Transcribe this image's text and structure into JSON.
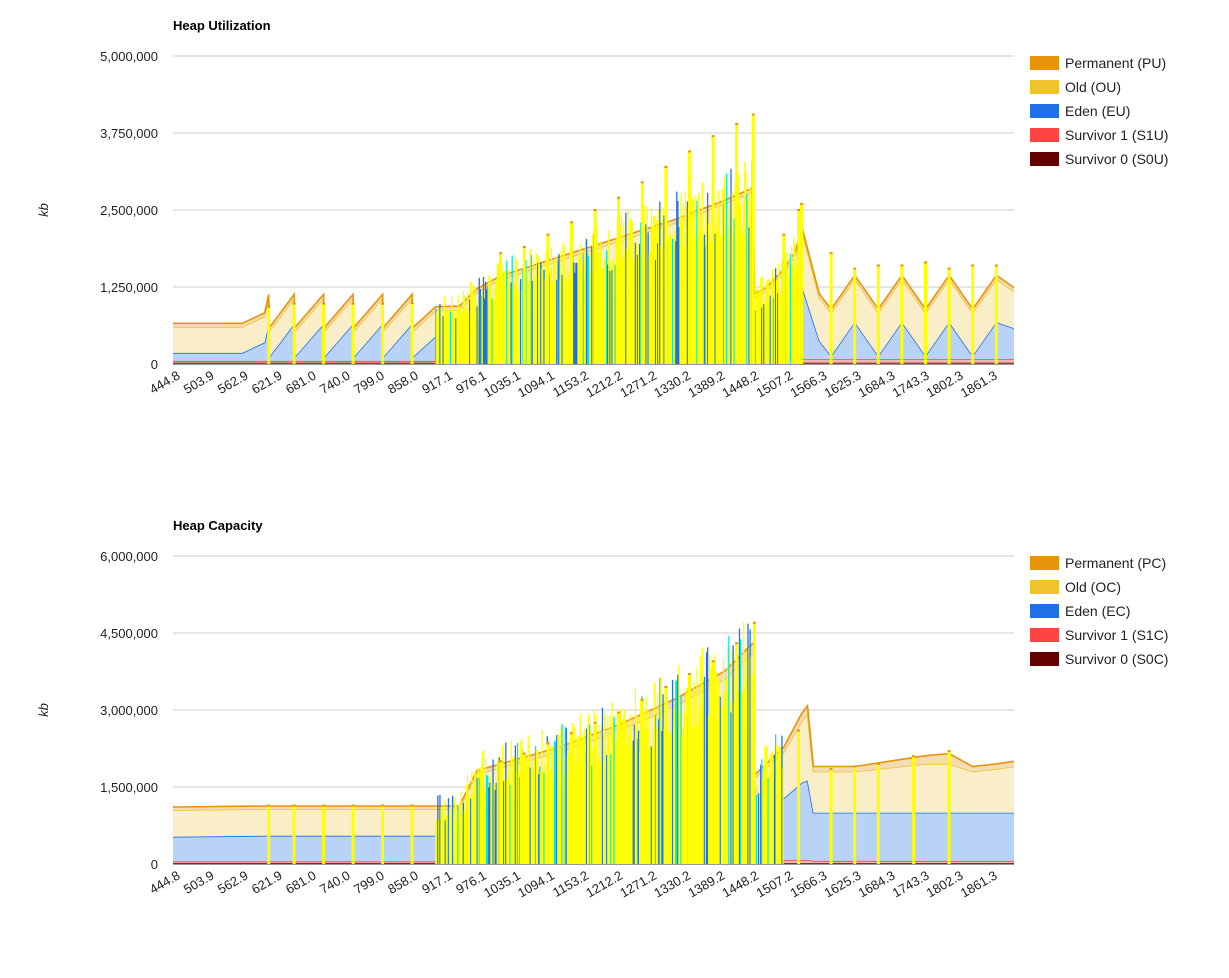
{
  "charts": [
    {
      "id": "utilization",
      "chart_data": {
        "type": "area",
        "stacked": true,
        "title": "Heap Utilization",
        "xlabel": "",
        "ylabel": "kb",
        "ylim": [
          0,
          5000000
        ],
        "yticks": [
          0,
          1250000,
          2500000,
          3750000,
          5000000
        ],
        "ytick_labels": [
          "0",
          "1,250,000",
          "2,500,000",
          "3,750,000",
          "5,000,000"
        ],
        "xlim": [
          444.8,
          1870
        ],
        "xtick_labels": [
          "444.8",
          "503.9",
          "562.9",
          "621.9",
          "681.0",
          "740.0",
          "799.0",
          "858.0",
          "917.1",
          "976.1",
          "1035.1",
          "1094.1",
          "1153.2",
          "1212.2",
          "1271.2",
          "1330.2",
          "1389.2",
          "1448.2",
          "1507.2",
          "1566.3",
          "1625.3",
          "1684.3",
          "1743.3",
          "1802.3",
          "1861.3"
        ],
        "grid": true,
        "legend_position": "right",
        "series": [
          {
            "name": "Survivor 0 (S0U)",
            "color": "#660000"
          },
          {
            "name": "Survivor 1 (S1U)",
            "color": "#ff4444"
          },
          {
            "name": "Eden (EU)",
            "color": "#1f6fe5"
          },
          {
            "name": "Old (OU)",
            "color": "#eec32c"
          },
          {
            "name": "Permanent (PU)",
            "color": "#e8940b"
          }
        ],
        "legend_order": [
          "Permanent (PU)",
          "Old (OU)",
          "Eden (EU)",
          "Survivor 1 (S1U)",
          "Survivor 0 (S0U)"
        ],
        "profile": {
          "x": [
            444.8,
            562,
            600,
            607,
            608,
            650,
            651,
            700,
            701,
            750,
            751,
            800,
            801,
            850,
            851,
            890,
            930,
            960,
            1000,
            1100,
            1200,
            1300,
            1380,
            1428,
            1430,
            1450,
            1480,
            1500,
            1510,
            1540,
            1560,
            1600,
            1640,
            1680,
            1720,
            1760,
            1800,
            1840,
            1870
          ],
          "s0": [
            20000,
            20000,
            20000,
            20000,
            20000,
            20000,
            20000,
            20000,
            20000,
            20000,
            20000,
            20000,
            20000,
            20000,
            20000,
            20000,
            20000,
            20000,
            20000,
            20000,
            20000,
            20000,
            20000,
            20000,
            20000,
            20000,
            20000,
            20000,
            20000,
            20000,
            20000,
            20000,
            20000,
            20000,
            20000,
            20000,
            20000,
            20000,
            20000
          ],
          "s1": [
            30000,
            30000,
            30000,
            30000,
            30000,
            30000,
            30000,
            30000,
            30000,
            30000,
            30000,
            30000,
            30000,
            30000,
            30000,
            30000,
            40000,
            40000,
            50000,
            60000,
            70000,
            80000,
            80000,
            80000,
            60000,
            60000,
            60000,
            60000,
            60000,
            60000,
            60000,
            60000,
            60000,
            60000,
            60000,
            60000,
            60000,
            60000,
            60000
          ],
          "eden": [
            130000,
            130000,
            300000,
            600000,
            60000,
            600000,
            60000,
            600000,
            60000,
            600000,
            60000,
            600000,
            60000,
            600000,
            60000,
            400000,
            400000,
            600000,
            700000,
            800000,
            1000000,
            1200000,
            1400000,
            1500000,
            400000,
            500000,
            700000,
            900000,
            1200000,
            300000,
            50000,
            600000,
            50000,
            600000,
            50000,
            600000,
            50000,
            600000,
            500000
          ],
          "old": [
            420000,
            420000,
            420000,
            420000,
            420000,
            420000,
            420000,
            420000,
            420000,
            420000,
            420000,
            420000,
            420000,
            420000,
            420000,
            420000,
            420000,
            500000,
            600000,
            800000,
            900000,
            1000000,
            1100000,
            1200000,
            600000,
            600000,
            700000,
            800000,
            900000,
            700000,
            700000,
            700000,
            700000,
            700000,
            700000,
            700000,
            700000,
            700000,
            600000
          ],
          "perm": [
            60000,
            60000,
            60000,
            60000,
            60000,
            60000,
            60000,
            60000,
            60000,
            60000,
            60000,
            60000,
            60000,
            60000,
            60000,
            60000,
            60000,
            60000,
            60000,
            60000,
            60000,
            60000,
            60000,
            60000,
            60000,
            60000,
            60000,
            60000,
            60000,
            60000,
            60000,
            60000,
            60000,
            60000,
            60000,
            60000,
            60000,
            60000,
            60000
          ]
        },
        "spikes": [
          {
            "x": 607,
            "top": 930000
          },
          {
            "x": 650,
            "top": 980000
          },
          {
            "x": 700,
            "top": 980000
          },
          {
            "x": 750,
            "top": 980000
          },
          {
            "x": 800,
            "top": 980000
          },
          {
            "x": 850,
            "top": 990000
          },
          {
            "x": 1000,
            "top": 1800000
          },
          {
            "x": 1040,
            "top": 1900000
          },
          {
            "x": 1080,
            "top": 2100000
          },
          {
            "x": 1120,
            "top": 2300000
          },
          {
            "x": 1160,
            "top": 2500000
          },
          {
            "x": 1200,
            "top": 2700000
          },
          {
            "x": 1240,
            "top": 2950000
          },
          {
            "x": 1280,
            "top": 3200000
          },
          {
            "x": 1320,
            "top": 3450000
          },
          {
            "x": 1360,
            "top": 3700000
          },
          {
            "x": 1400,
            "top": 3900000
          },
          {
            "x": 1428,
            "top": 4050000
          },
          {
            "x": 1480,
            "top": 2100000
          },
          {
            "x": 1505,
            "top": 2500000
          },
          {
            "x": 1510,
            "top": 2600000
          },
          {
            "x": 1560,
            "top": 1800000
          },
          {
            "x": 1600,
            "top": 1550000
          },
          {
            "x": 1640,
            "top": 1600000
          },
          {
            "x": 1680,
            "top": 1600000
          },
          {
            "x": 1720,
            "top": 1650000
          },
          {
            "x": 1760,
            "top": 1550000
          },
          {
            "x": 1800,
            "top": 1600000
          },
          {
            "x": 1840,
            "top": 1600000
          }
        ],
        "noise_region": {
          "x": [
            890,
            1510
          ]
        }
      }
    },
    {
      "id": "capacity",
      "chart_data": {
        "type": "area",
        "stacked": true,
        "title": "Heap Capacity",
        "xlabel": "",
        "ylabel": "kb",
        "ylim": [
          0,
          6000000
        ],
        "yticks": [
          0,
          1500000,
          3000000,
          4500000,
          6000000
        ],
        "ytick_labels": [
          "0",
          "1,500,000",
          "3,000,000",
          "4,500,000",
          "6,000,000"
        ],
        "xlim": [
          444.8,
          1870
        ],
        "xtick_labels": [
          "444.8",
          "503.9",
          "562.9",
          "621.9",
          "681.0",
          "740.0",
          "799.0",
          "858.0",
          "917.1",
          "976.1",
          "1035.1",
          "1094.1",
          "1153.2",
          "1212.2",
          "1271.2",
          "1330.2",
          "1389.2",
          "1448.2",
          "1507.2",
          "1566.3",
          "1625.3",
          "1684.3",
          "1743.3",
          "1802.3",
          "1861.3"
        ],
        "grid": true,
        "legend_position": "right",
        "series": [
          {
            "name": "Survivor 0 (S0C)",
            "color": "#660000"
          },
          {
            "name": "Survivor 1 (S1C)",
            "color": "#ff4444"
          },
          {
            "name": "Eden (EC)",
            "color": "#1f6fe5"
          },
          {
            "name": "Old (OC)",
            "color": "#eec32c"
          },
          {
            "name": "Permanent (PC)",
            "color": "#e8940b"
          }
        ],
        "legend_order": [
          "Permanent (PC)",
          "Old (OC)",
          "Eden (EC)",
          "Survivor 1 (S1C)",
          "Survivor 0 (S0C)"
        ],
        "profile": {
          "x": [
            444.8,
            600,
            700,
            800,
            890,
            930,
            960,
            1000,
            1100,
            1200,
            1300,
            1380,
            1430,
            1431,
            1480,
            1510,
            1520,
            1530,
            1600,
            1640,
            1680,
            1720,
            1760,
            1800,
            1840,
            1870
          ],
          "s0": [
            20000,
            20000,
            20000,
            20000,
            20000,
            20000,
            20000,
            20000,
            20000,
            20000,
            20000,
            20000,
            20000,
            20000,
            20000,
            20000,
            20000,
            20000,
            20000,
            20000,
            20000,
            20000,
            20000,
            20000,
            20000,
            20000
          ],
          "s1": [
            30000,
            30000,
            30000,
            30000,
            30000,
            30000,
            40000,
            50000,
            60000,
            70000,
            80000,
            80000,
            80000,
            60000,
            60000,
            60000,
            60000,
            40000,
            40000,
            40000,
            40000,
            40000,
            40000,
            40000,
            40000,
            40000
          ],
          "eden": [
            480000,
            500000,
            500000,
            500000,
            500000,
            500000,
            900000,
            1100000,
            1300000,
            1600000,
            1900000,
            2200000,
            2450000,
            900000,
            1200000,
            1500000,
            1550000,
            940000,
            940000,
            940000,
            940000,
            940000,
            940000,
            940000,
            940000,
            940000
          ],
          "old": [
            520000,
            520000,
            520000,
            520000,
            520000,
            520000,
            800000,
            700000,
            800000,
            900000,
            1100000,
            1300000,
            1600000,
            700000,
            900000,
            1200000,
            1300000,
            800000,
            800000,
            850000,
            900000,
            950000,
            950000,
            800000,
            850000,
            900000
          ],
          "perm": [
            60000,
            60000,
            60000,
            60000,
            60000,
            60000,
            60000,
            80000,
            100000,
            120000,
            140000,
            160000,
            180000,
            60000,
            100000,
            150000,
            150000,
            100000,
            100000,
            120000,
            140000,
            160000,
            200000,
            100000,
            100000,
            100000
          ]
        },
        "spikes": [
          {
            "x": 607,
            "top": 1140000
          },
          {
            "x": 650,
            "top": 1140000
          },
          {
            "x": 700,
            "top": 1140000
          },
          {
            "x": 750,
            "top": 1140000
          },
          {
            "x": 800,
            "top": 1140000
          },
          {
            "x": 850,
            "top": 1140000
          },
          {
            "x": 1000,
            "top": 2000000
          },
          {
            "x": 1040,
            "top": 2150000
          },
          {
            "x": 1080,
            "top": 2350000
          },
          {
            "x": 1120,
            "top": 2550000
          },
          {
            "x": 1160,
            "top": 2750000
          },
          {
            "x": 1200,
            "top": 2950000
          },
          {
            "x": 1240,
            "top": 3200000
          },
          {
            "x": 1280,
            "top": 3450000
          },
          {
            "x": 1320,
            "top": 3700000
          },
          {
            "x": 1360,
            "top": 3950000
          },
          {
            "x": 1400,
            "top": 4300000
          },
          {
            "x": 1430,
            "top": 4700000
          },
          {
            "x": 1505,
            "top": 2600000
          },
          {
            "x": 1560,
            "top": 1850000
          },
          {
            "x": 1600,
            "top": 1900000
          },
          {
            "x": 1640,
            "top": 1950000
          },
          {
            "x": 1700,
            "top": 2100000
          },
          {
            "x": 1760,
            "top": 2200000
          }
        ],
        "noise_region": {
          "x": [
            890,
            1480
          ]
        }
      }
    }
  ]
}
